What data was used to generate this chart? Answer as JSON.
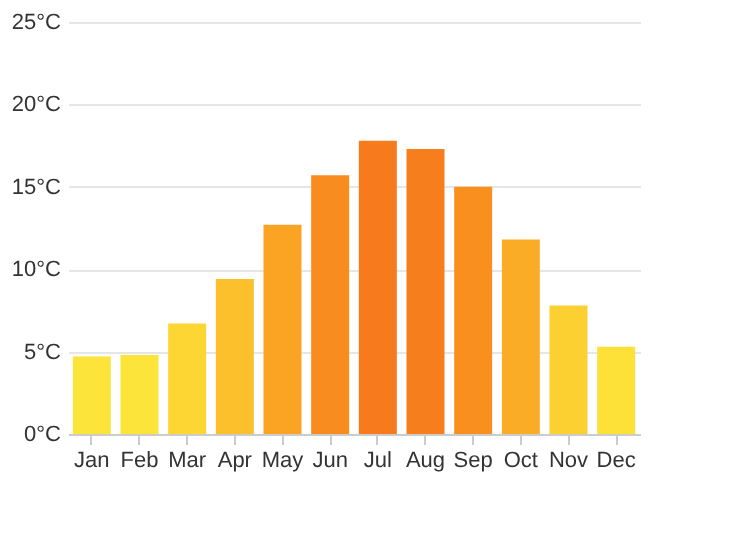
{
  "chart_data": {
    "type": "bar",
    "categories": [
      "Jan",
      "Feb",
      "Mar",
      "Apr",
      "May",
      "Jun",
      "Jul",
      "Aug",
      "Sep",
      "Oct",
      "Nov",
      "Dec"
    ],
    "values": [
      4.7,
      4.8,
      6.7,
      9.4,
      12.7,
      15.7,
      17.8,
      17.3,
      15.0,
      11.8,
      7.8,
      5.3
    ],
    "colors": [
      "#fde43a",
      "#fde43a",
      "#fdd634",
      "#fcc02c",
      "#fba424",
      "#f98c1e",
      "#f77a1c",
      "#f77e1c",
      "#f98f1e",
      "#fbac26",
      "#fcd030",
      "#fde038"
    ],
    "ylim": [
      0,
      25
    ],
    "yticks": [
      {
        "value": 0,
        "label": "0°C"
      },
      {
        "value": 5,
        "label": "5°C"
      },
      {
        "value": 10,
        "label": "10°C"
      },
      {
        "value": 15,
        "label": "15°C"
      },
      {
        "value": 20,
        "label": "20°C"
      },
      {
        "value": 25,
        "label": "25°C"
      }
    ],
    "grid": "y"
  }
}
